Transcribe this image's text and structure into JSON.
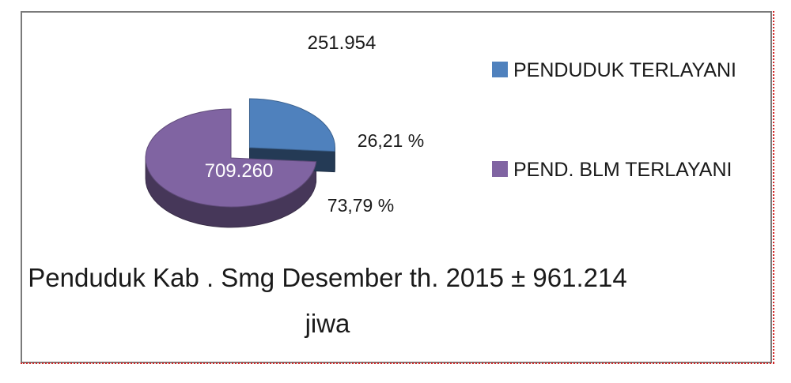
{
  "chart_data": {
    "type": "pie",
    "style": "3d-exploded",
    "legend_position": "right",
    "categories": [
      "PENDUDUK TERLAYANI",
      "PEND. BLM TERLAYANI"
    ],
    "values": [
      251954,
      709260
    ],
    "value_labels": [
      "251.954",
      "709.260"
    ],
    "percent_labels": [
      "26,21 %",
      "73,79 %"
    ],
    "percentages": [
      26.21,
      73.79
    ],
    "colors": [
      "#4f81bd",
      "#8064a2"
    ],
    "caption_line1": "Penduduk Kab . Smg Desember th. 2015 ± 961.214",
    "caption_line2": "jiwa"
  }
}
